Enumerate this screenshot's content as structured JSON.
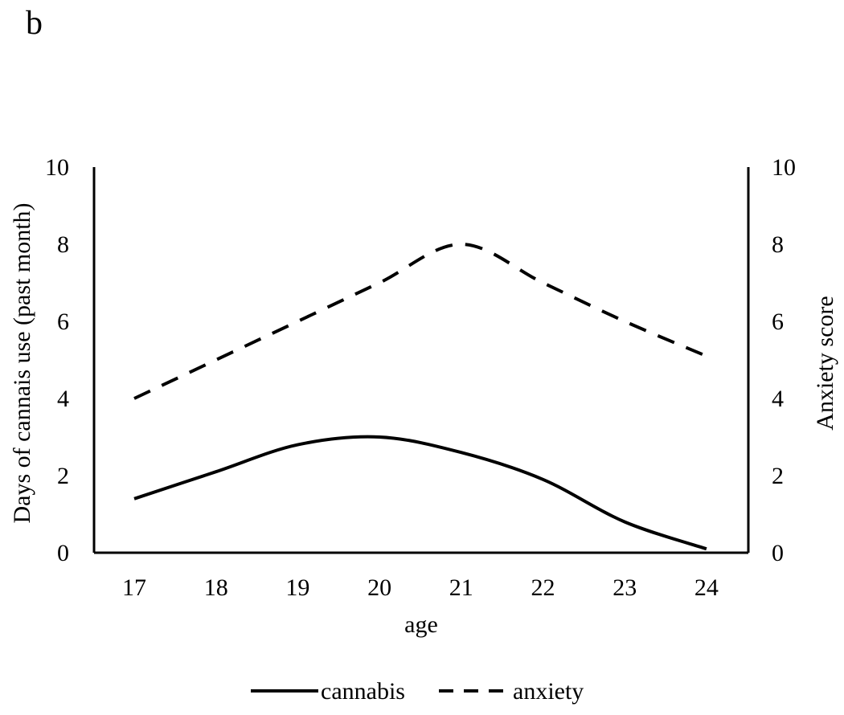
{
  "panel_label": "b",
  "chart_data": {
    "type": "line",
    "title": "",
    "xlabel": "age",
    "ylabel_left": "Days of cannais use (past month)",
    "ylabel_right": "Anxiety score",
    "x": [
      17,
      18,
      19,
      20,
      21,
      22,
      23,
      24
    ],
    "x_ticks": [
      "17",
      "18",
      "19",
      "20",
      "21",
      "22",
      "23",
      "24"
    ],
    "ylim_left": [
      0,
      10
    ],
    "ylim_right": [
      0,
      10
    ],
    "y_ticks_left": [
      "0",
      "2",
      "4",
      "6",
      "8",
      "10"
    ],
    "y_ticks_right": [
      "0",
      "2",
      "4",
      "6",
      "8",
      "10"
    ],
    "grid": false,
    "legend_position": "bottom",
    "series": [
      {
        "name": "cannabis",
        "axis": "left",
        "style": "solid",
        "color": "#000000",
        "values": [
          1.4,
          2.1,
          2.8,
          3.0,
          2.6,
          1.9,
          0.8,
          0.1
        ]
      },
      {
        "name": "anxiety",
        "axis": "right",
        "style": "dashed",
        "color": "#000000",
        "values": [
          4.0,
          5.0,
          6.0,
          7.0,
          8.0,
          7.0,
          6.0,
          5.1
        ]
      }
    ]
  }
}
